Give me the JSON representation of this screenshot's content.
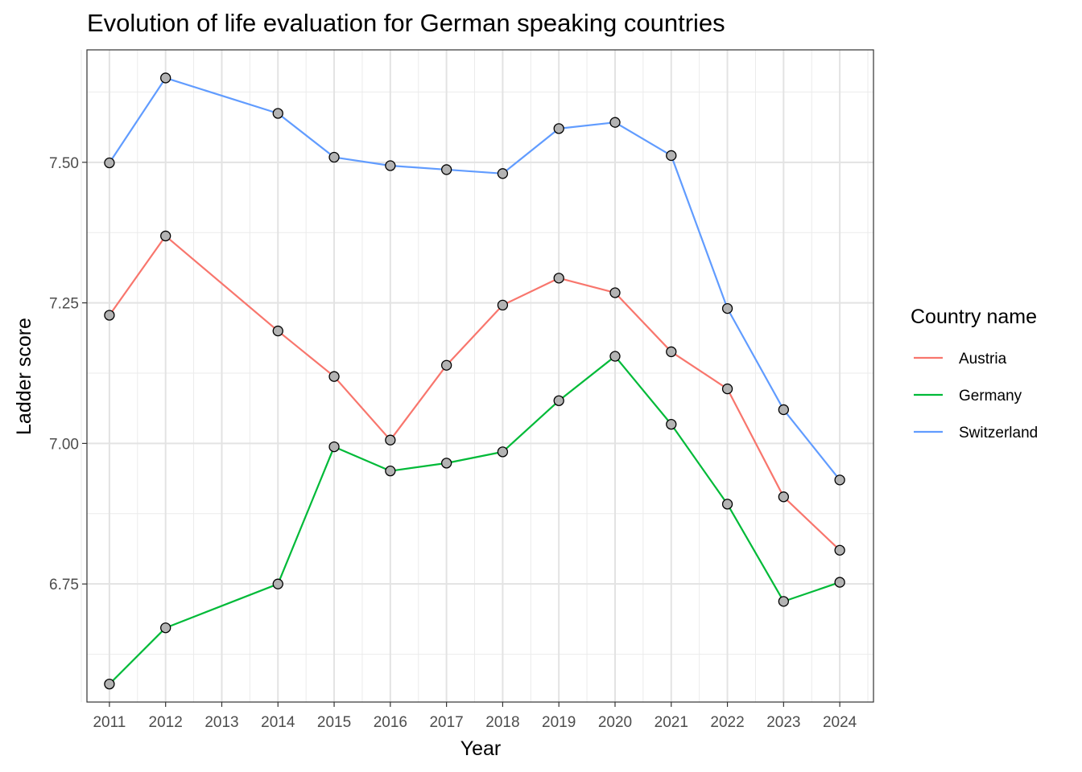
{
  "chart_data": {
    "type": "line",
    "title": "Evolution of life evaluation for German speaking countries",
    "xlabel": "Year",
    "ylabel": "Ladder score",
    "x_ticks": [
      "2011",
      "2012",
      "2013",
      "2014",
      "2015",
      "2016",
      "2017",
      "2018",
      "2019",
      "2020",
      "2021",
      "2022",
      "2023",
      "2024"
    ],
    "y_ticks": [
      "6.75",
      "7.00",
      "7.25",
      "7.50"
    ],
    "y_tick_values": [
      6.75,
      7.0,
      7.25,
      7.5
    ],
    "xlim": [
      2010.6,
      2024.6
    ],
    "ylim": [
      6.54,
      7.7
    ],
    "grid": true,
    "legend": {
      "title": "Country name",
      "position": "right"
    },
    "series": [
      {
        "name": "Austria",
        "color": "#F8766D",
        "x": [
          2011,
          2012,
          2014,
          2015,
          2016,
          2017,
          2018,
          2019,
          2020,
          2021,
          2022,
          2023,
          2024
        ],
        "y": [
          7.228,
          7.369,
          7.2,
          7.119,
          7.006,
          7.139,
          7.246,
          7.294,
          7.268,
          7.163,
          7.097,
          6.905,
          6.81
        ]
      },
      {
        "name": "Germany",
        "color": "#00BA38",
        "x": [
          2011,
          2012,
          2014,
          2015,
          2016,
          2017,
          2018,
          2019,
          2020,
          2021,
          2022,
          2023,
          2024
        ],
        "y": [
          6.572,
          6.672,
          6.75,
          6.994,
          6.951,
          6.965,
          6.985,
          7.076,
          7.155,
          7.034,
          6.892,
          6.719,
          6.753
        ]
      },
      {
        "name": "Switzerland",
        "color": "#619CFF",
        "x": [
          2011,
          2012,
          2014,
          2015,
          2016,
          2017,
          2018,
          2019,
          2020,
          2021,
          2022,
          2023,
          2024
        ],
        "y": [
          7.499,
          7.65,
          7.587,
          7.509,
          7.494,
          7.487,
          7.48,
          7.56,
          7.571,
          7.512,
          7.24,
          7.06,
          6.935
        ]
      }
    ],
    "point_fill": "#B3B3B3",
    "point_stroke": "#000000"
  }
}
